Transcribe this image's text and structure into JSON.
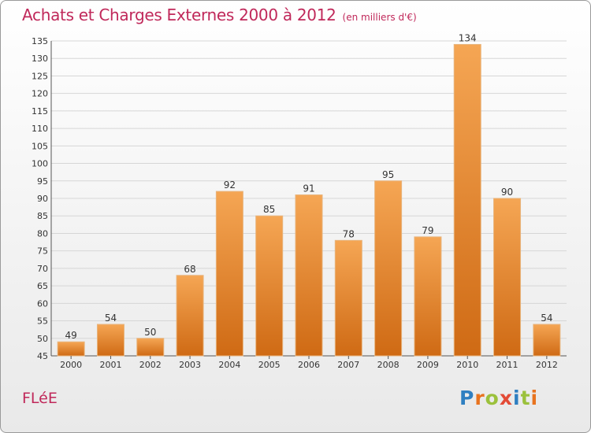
{
  "title": "Achats et Charges Externes 2000 à 2012",
  "unit_label": "(en milliers d'€)",
  "commune": "FLéE",
  "logo_text": "Proxiti",
  "logo_colors": [
    "#2f7fc1",
    "#e8731f",
    "#9bc13c",
    "#e34b36",
    "#2f7fc1",
    "#9bc13c",
    "#e8731f"
  ],
  "colors": {
    "title": "#c0285a",
    "bar_top": "#f5a654",
    "bar_bottom": "#cf6a14",
    "grid": "#d6d6d6"
  },
  "chart_data": {
    "type": "bar",
    "title": "Achats et Charges Externes 2000 à 2012",
    "unit": "(en milliers d'€)",
    "categories": [
      "2000",
      "2001",
      "2002",
      "2003",
      "2004",
      "2005",
      "2006",
      "2007",
      "2008",
      "2009",
      "2010",
      "2011",
      "2012"
    ],
    "values": [
      49,
      54,
      50,
      68,
      92,
      85,
      91,
      78,
      95,
      79,
      134,
      90,
      54
    ],
    "ylim": [
      45,
      135
    ],
    "yticks": [
      45,
      50,
      55,
      60,
      65,
      70,
      75,
      80,
      85,
      90,
      95,
      100,
      105,
      110,
      115,
      120,
      125,
      130,
      135
    ],
    "grid": true
  }
}
